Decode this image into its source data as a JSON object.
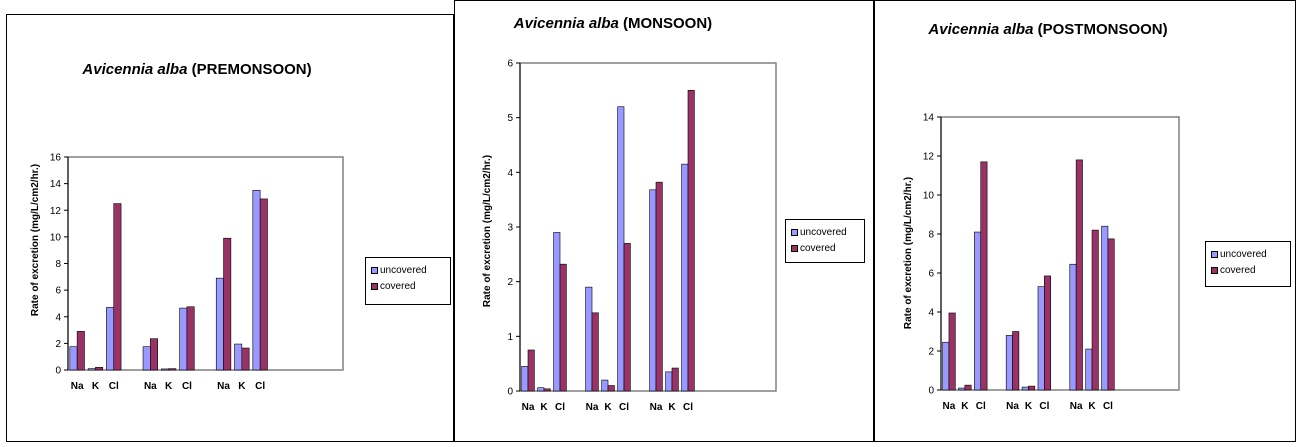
{
  "colors": {
    "uncovered": "#9999ff",
    "covered": "#993366"
  },
  "legend": {
    "uncovered": "uncovered",
    "covered": "covered"
  },
  "y_axis_label": "Rate of excretion (mg/L/cm2/hr.)",
  "chart_data": [
    {
      "type": "bar",
      "title_species": "Avicennia alba",
      "title_season": "(PREMONSOON)",
      "ylabel": "Rate of excretion (mg/L/cm2/hr.)",
      "ylim": [
        0,
        16
      ],
      "yticks": [
        0,
        2,
        4,
        6,
        8,
        10,
        12,
        14,
        16
      ],
      "categories": [
        "Na",
        "K",
        "Cl",
        "",
        "Na",
        "K",
        "Cl",
        "",
        "Na",
        "K",
        "Cl",
        ""
      ],
      "series": [
        {
          "name": "uncovered",
          "values": [
            1.75,
            0.1,
            4.7,
            null,
            1.75,
            0.08,
            4.65,
            null,
            6.9,
            1.95,
            13.5,
            null
          ]
        },
        {
          "name": "covered",
          "values": [
            2.9,
            0.2,
            12.5,
            null,
            2.35,
            0.1,
            4.75,
            null,
            9.9,
            1.65,
            12.85,
            null
          ]
        }
      ],
      "legend_position": "right"
    },
    {
      "type": "bar",
      "title_species": "Avicennia alba",
      "title_season": "(MONSOON)",
      "ylabel": "Rate of excretion (mg/L/cm2/hr.)",
      "ylim": [
        0,
        6
      ],
      "yticks": [
        0,
        1,
        2,
        3,
        4,
        5,
        6
      ],
      "categories": [
        "Na",
        "K",
        "Cl",
        "",
        "Na",
        "K",
        "Cl",
        "",
        "Na",
        "K",
        "Cl",
        ""
      ],
      "series": [
        {
          "name": "uncovered",
          "values": [
            0.45,
            0.06,
            2.9,
            null,
            1.9,
            0.2,
            5.2,
            null,
            3.68,
            0.35,
            4.15,
            null
          ]
        },
        {
          "name": "covered",
          "values": [
            0.75,
            0.04,
            2.32,
            null,
            1.43,
            0.1,
            2.7,
            null,
            3.82,
            0.42,
            5.5,
            null
          ]
        }
      ],
      "legend_position": "right"
    },
    {
      "type": "bar",
      "title_species": "Avicennia alba",
      "title_season": "(POSTMONSOON)",
      "ylabel": "Rate of excretion (mg/L/cm2/hr.)",
      "ylim": [
        0,
        14
      ],
      "yticks": [
        0,
        2,
        4,
        6,
        8,
        10,
        12,
        14
      ],
      "categories": [
        "Na",
        "K",
        "Cl",
        "",
        "Na",
        "K",
        "Cl",
        "",
        "Na",
        "K",
        "Cl",
        ""
      ],
      "series": [
        {
          "name": "uncovered",
          "values": [
            2.45,
            0.1,
            8.1,
            null,
            2.8,
            0.15,
            5.3,
            null,
            6.45,
            2.1,
            8.4,
            null
          ]
        },
        {
          "name": "covered",
          "values": [
            3.95,
            0.25,
            11.7,
            null,
            3.0,
            0.2,
            5.85,
            null,
            11.8,
            8.2,
            7.75,
            null
          ]
        }
      ],
      "legend_position": "right"
    }
  ]
}
